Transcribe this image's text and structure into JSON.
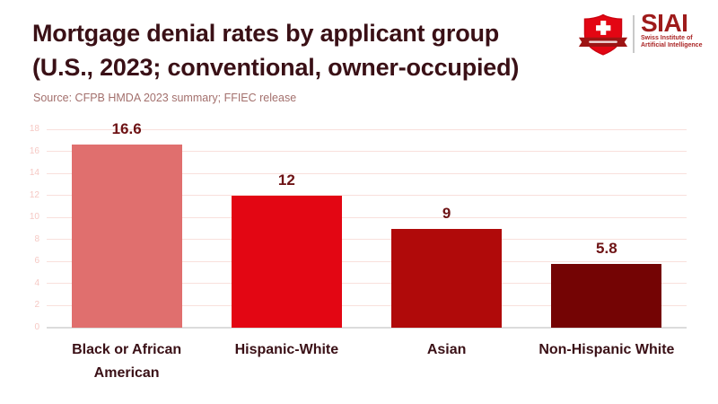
{
  "header": {
    "title_line1": "Mortgage denial rates by applicant group",
    "title_line2": "(U.S., 2023; conventional, owner-occupied)",
    "source": "Source: CFPB HMDA 2023 summary; FFIEC release"
  },
  "logo": {
    "acronym": "SIAI",
    "name_line1": "Swiss Institute of",
    "name_line2": "Artificial Intelligence"
  },
  "chart_data": {
    "type": "bar",
    "title": "Mortgage denial rates by applicant group (U.S., 2023; conventional, owner-occupied)",
    "categories": [
      "Black or African American",
      "Hispanic-White",
      "Asian",
      "Non-Hispanic White"
    ],
    "values": [
      16.6,
      12,
      9,
      5.8
    ],
    "value_labels": [
      "16.6",
      "12",
      "9",
      "5.8"
    ],
    "bar_colors": [
      "#e06f6e",
      "#e30613",
      "#b00a0a",
      "#740404"
    ],
    "xlabel": "",
    "ylabel": "",
    "ylim": [
      0,
      18
    ],
    "yticks": [
      0,
      2,
      4,
      6,
      8,
      10,
      12,
      14,
      16,
      18
    ],
    "grid": true,
    "legend": "none"
  },
  "colors": {
    "title_text": "#3a1016",
    "source_text": "#a3706d",
    "value_label": "#6d1214",
    "category_label": "#3a1016",
    "ytick_label": "#f6c9c4",
    "gridline": "#f9e0dc",
    "axis_line": "#dcdcdc",
    "logo_shield_red": "#e30613",
    "logo_banner_red": "#9d1414",
    "logo_text_dark_red": "#9e1b1b",
    "background": "#ffffff"
  }
}
